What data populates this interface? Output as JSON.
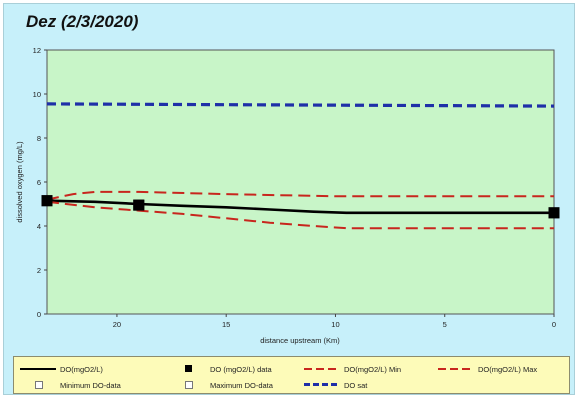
{
  "chart_data": {
    "type": "line",
    "title": "Dez (2/3/2020)",
    "xlabel": "distance upstream (Km)",
    "ylabel": "dissolved oxygen (mg/L)",
    "xlim": [
      23.2,
      0
    ],
    "ylim": [
      0,
      12
    ],
    "x_ticks": [
      20,
      15,
      10,
      5,
      0
    ],
    "y_ticks": [
      0,
      2,
      4,
      6,
      8,
      10,
      12
    ],
    "grid": false,
    "legend_position": "bottom",
    "plot_background": "#c8f5c8",
    "series": [
      {
        "name": "DO(mgO2/L)",
        "style": "solid",
        "color": "#000000",
        "x": [
          23.2,
          21,
          19,
          17,
          15,
          13,
          11,
          9.5,
          7,
          5,
          3,
          0
        ],
        "y": [
          5.15,
          5.1,
          5.0,
          4.92,
          4.85,
          4.75,
          4.65,
          4.6,
          4.6,
          4.6,
          4.6,
          4.6
        ]
      },
      {
        "name": "DO (mgO2/L) data",
        "style": "marker-square",
        "color": "#000000",
        "x": [
          23.2,
          19,
          0
        ],
        "y": [
          5.15,
          4.95,
          4.6
        ]
      },
      {
        "name": "DO(mgO2/L) Min",
        "style": "dashed",
        "color": "#c8261e",
        "x": [
          23.2,
          21,
          19,
          17,
          15,
          13,
          11,
          9.5,
          7,
          5,
          3,
          0
        ],
        "y": [
          5.1,
          4.85,
          4.7,
          4.55,
          4.35,
          4.15,
          4.0,
          3.9,
          3.9,
          3.9,
          3.9,
          3.9
        ]
      },
      {
        "name": "DO(mgO2/L) Max",
        "style": "dashed",
        "color": "#c8261e",
        "x": [
          23.2,
          22,
          21,
          19,
          15,
          10,
          5,
          0
        ],
        "y": [
          5.2,
          5.45,
          5.55,
          5.55,
          5.45,
          5.35,
          5.35,
          5.35
        ]
      },
      {
        "name": "Minimum DO-data",
        "style": "marker-open-square",
        "color": "#777777",
        "x": [],
        "y": []
      },
      {
        "name": "Maximum DO-data",
        "style": "marker-open-square",
        "color": "#777777",
        "x": [],
        "y": []
      },
      {
        "name": "DO sat",
        "style": "dashed-thick",
        "color": "#1f2fa8",
        "x": [
          23.2,
          0
        ],
        "y": [
          9.55,
          9.45
        ]
      }
    ]
  },
  "legend": {
    "items": [
      "DO(mgO2/L)",
      "DO (mgO2/L) data",
      "DO(mgO2/L) Min",
      "DO(mgO2/L) Max",
      "Minimum DO-data",
      "Maximum DO-data",
      "DO sat"
    ]
  }
}
